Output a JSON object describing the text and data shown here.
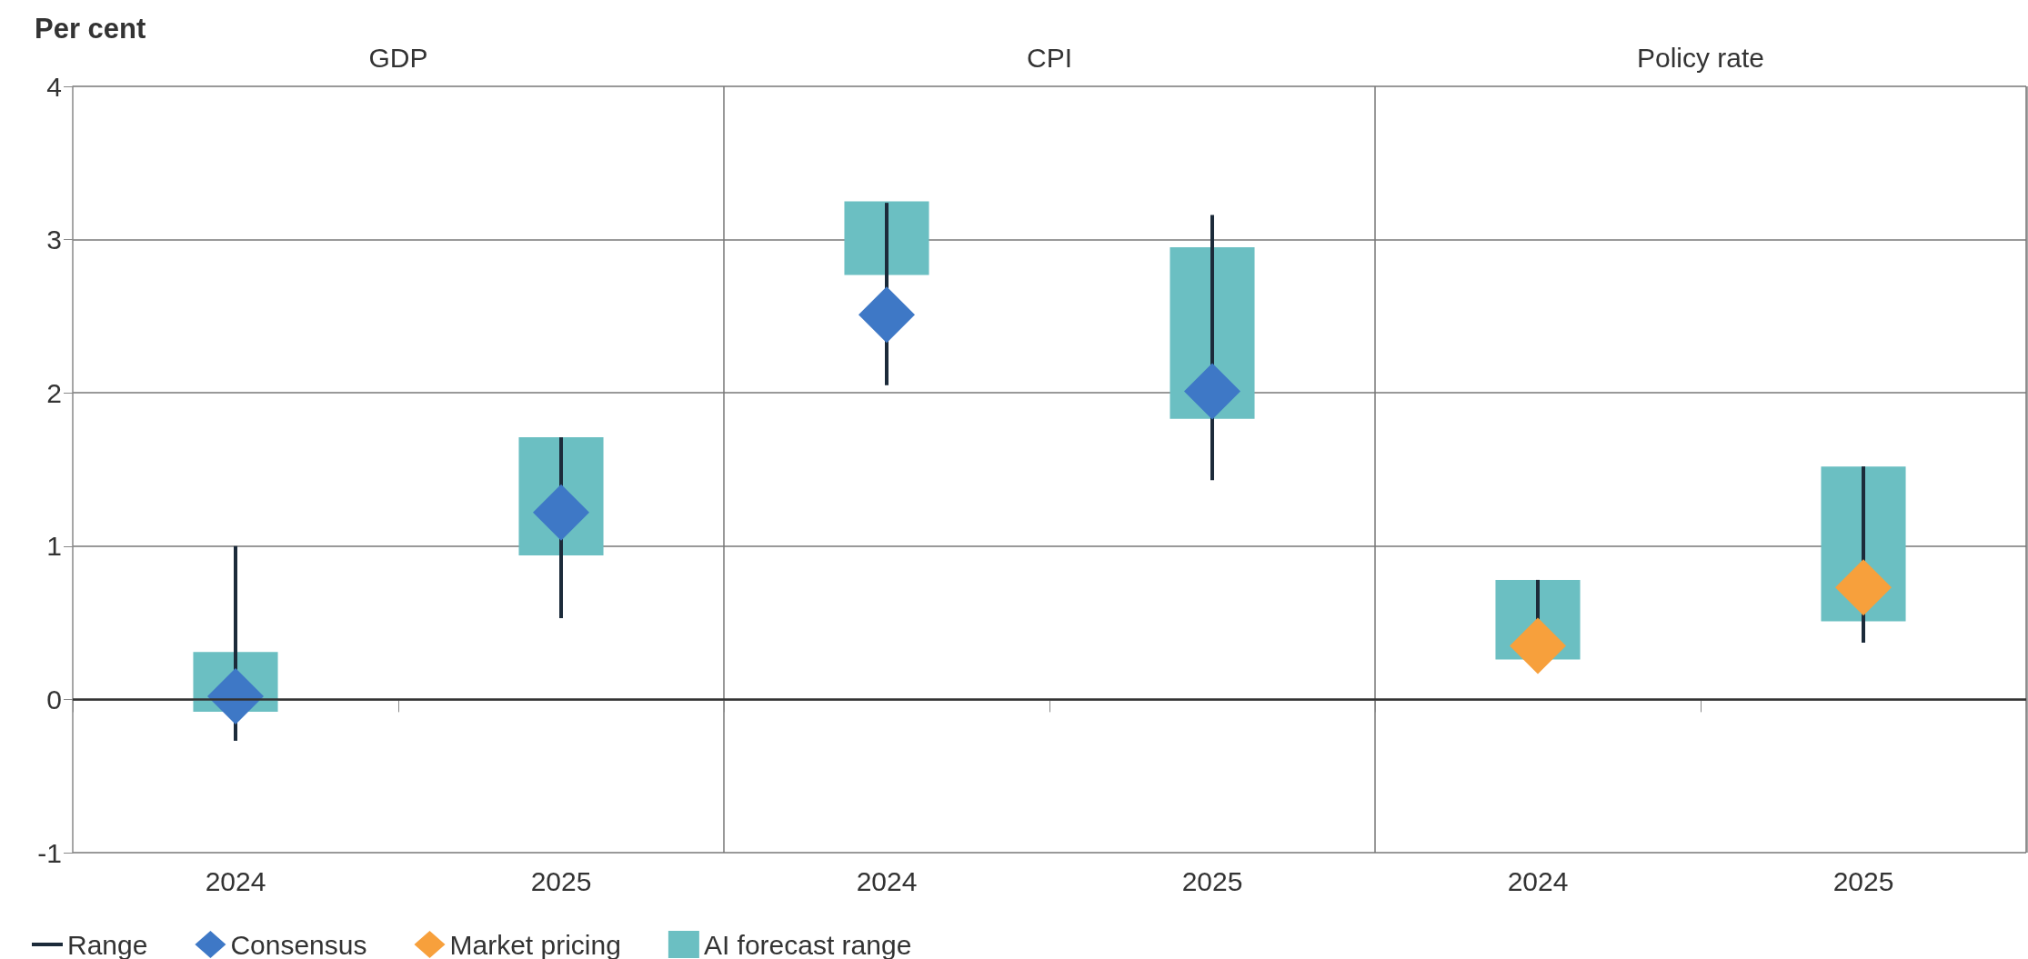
{
  "chart_data": {
    "type": "bar",
    "ylabel": "Per cent",
    "categories": [
      "2024",
      "2025",
      "2024",
      "2025",
      "2024",
      "2025"
    ],
    "annotations": [
      "GDP",
      "CPI",
      "Policy rate"
    ],
    "series": [
      {
        "name": "Range",
        "line_style": "solid",
        "color": "#1c2b3a",
        "base": [
          -0.27,
          0.53,
          2.05,
          1.43,
          0.26,
          0.37
        ],
        "values": [
          1.27,
          1.18,
          1.19,
          1.73,
          0.52,
          1.15
        ]
      },
      {
        "name": "Consensus",
        "type": "scatter",
        "marker": "diamond",
        "color": "#3e78c6",
        "values": [
          0.02,
          1.22,
          2.51,
          2.01,
          null,
          null
        ]
      },
      {
        "name": "Market pricing",
        "type": "scatter",
        "marker": "diamond",
        "color": "#f7a03c",
        "values": [
          null,
          null,
          null,
          null,
          0.35,
          0.73
        ]
      },
      {
        "name": "AI forecast range",
        "color": "#6bbfc2",
        "base": [
          -0.08,
          0.94,
          2.77,
          1.83,
          0.26,
          0.51
        ],
        "values": [
          0.39,
          0.77,
          0.48,
          1.12,
          0.52,
          1.01
        ]
      }
    ],
    "ylim": [
      -1,
      4
    ],
    "yticks": [
      -1,
      0,
      1,
      2,
      3,
      4
    ],
    "grid": true,
    "legend": "bottom left",
    "ref_lines": [
      {
        "axis": "y",
        "value": 0,
        "color": "#333333"
      }
    ]
  }
}
